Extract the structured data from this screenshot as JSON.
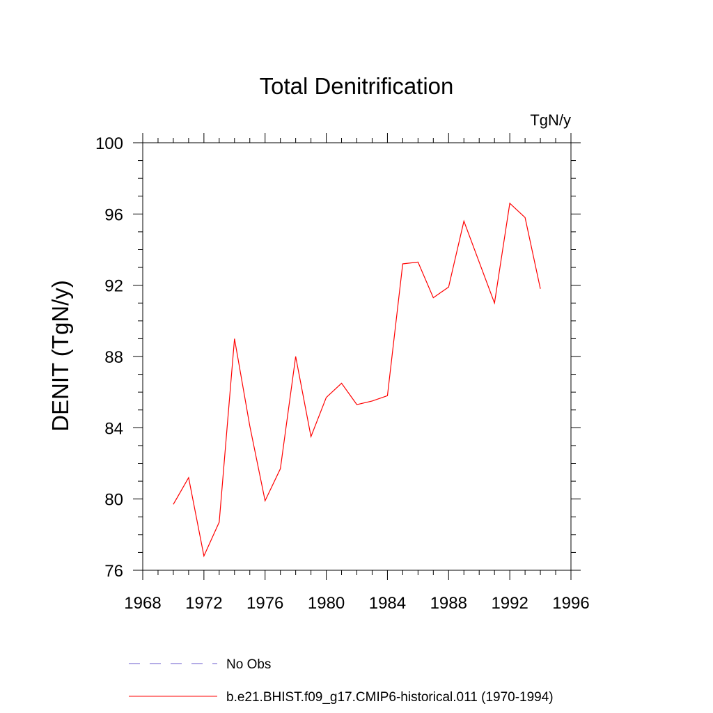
{
  "chart_data": {
    "type": "line",
    "title": "Total Denitrification",
    "units_label": "TgN/y",
    "xlabel": "",
    "ylabel": "DENIT  (TgN/y)",
    "xlim": [
      1968,
      1996
    ],
    "ylim": [
      76,
      100
    ],
    "x_ticks": [
      1968,
      1972,
      1976,
      1980,
      1984,
      1988,
      1992,
      1996
    ],
    "y_ticks": [
      76,
      80,
      84,
      88,
      92,
      96,
      100
    ],
    "grid": false,
    "legend_position": "bottom",
    "series": [
      {
        "name": "b.e21.BHIST.f09_g17.CMIP6-historical.011 (1970-1994)",
        "color": "#ff0000",
        "style": "solid",
        "x": [
          1970,
          1971,
          1972,
          1973,
          1974,
          1975,
          1976,
          1977,
          1978,
          1979,
          1980,
          1981,
          1982,
          1983,
          1984,
          1985,
          1986,
          1987,
          1988,
          1989,
          1990,
          1991,
          1992,
          1993,
          1994
        ],
        "y": [
          79.7,
          81.2,
          76.8,
          78.7,
          89.0,
          84.1,
          79.9,
          81.7,
          88.0,
          83.5,
          85.7,
          86.5,
          85.3,
          85.5,
          85.8,
          93.2,
          93.3,
          91.3,
          91.9,
          95.6,
          93.3,
          91.0,
          96.6,
          95.8,
          91.8
        ]
      }
    ],
    "legend": [
      {
        "label": "No Obs",
        "color": "#6a5acd",
        "style": "dashed"
      },
      {
        "label": "b.e21.BHIST.f09_g17.CMIP6-historical.011 (1970-1994)",
        "color": "#ff0000",
        "style": "solid"
      }
    ]
  }
}
